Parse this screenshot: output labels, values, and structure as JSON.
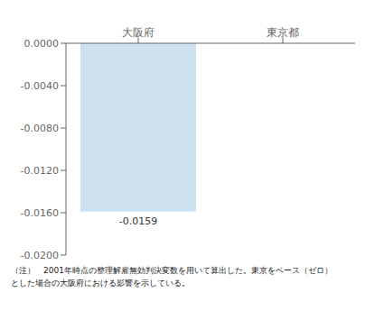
{
  "chart_data": {
    "type": "bar",
    "categories": [
      "大阪府",
      "東京都"
    ],
    "values": [
      -0.0159,
      0
    ],
    "color": "#cce0f0",
    "ylim": [
      -0.02,
      0.0
    ],
    "yticks": [
      {
        "value": 0.0,
        "label": "0.0000"
      },
      {
        "value": -0.004,
        "label": "-0.0040"
      },
      {
        "value": -0.008,
        "label": "-0.0080"
      },
      {
        "value": -0.012,
        "label": "-0.0120"
      },
      {
        "value": -0.016,
        "label": "-0.0160"
      },
      {
        "value": -0.02,
        "label": "-0.0200"
      }
    ],
    "data_labels": true,
    "grid": false,
    "annotations": [
      "（注）　2001年時点の整理解雇無効判決変数を用いて算出した。東京をベース（ゼロ）",
      "とした場合の大阪府における影響を示している。"
    ]
  }
}
